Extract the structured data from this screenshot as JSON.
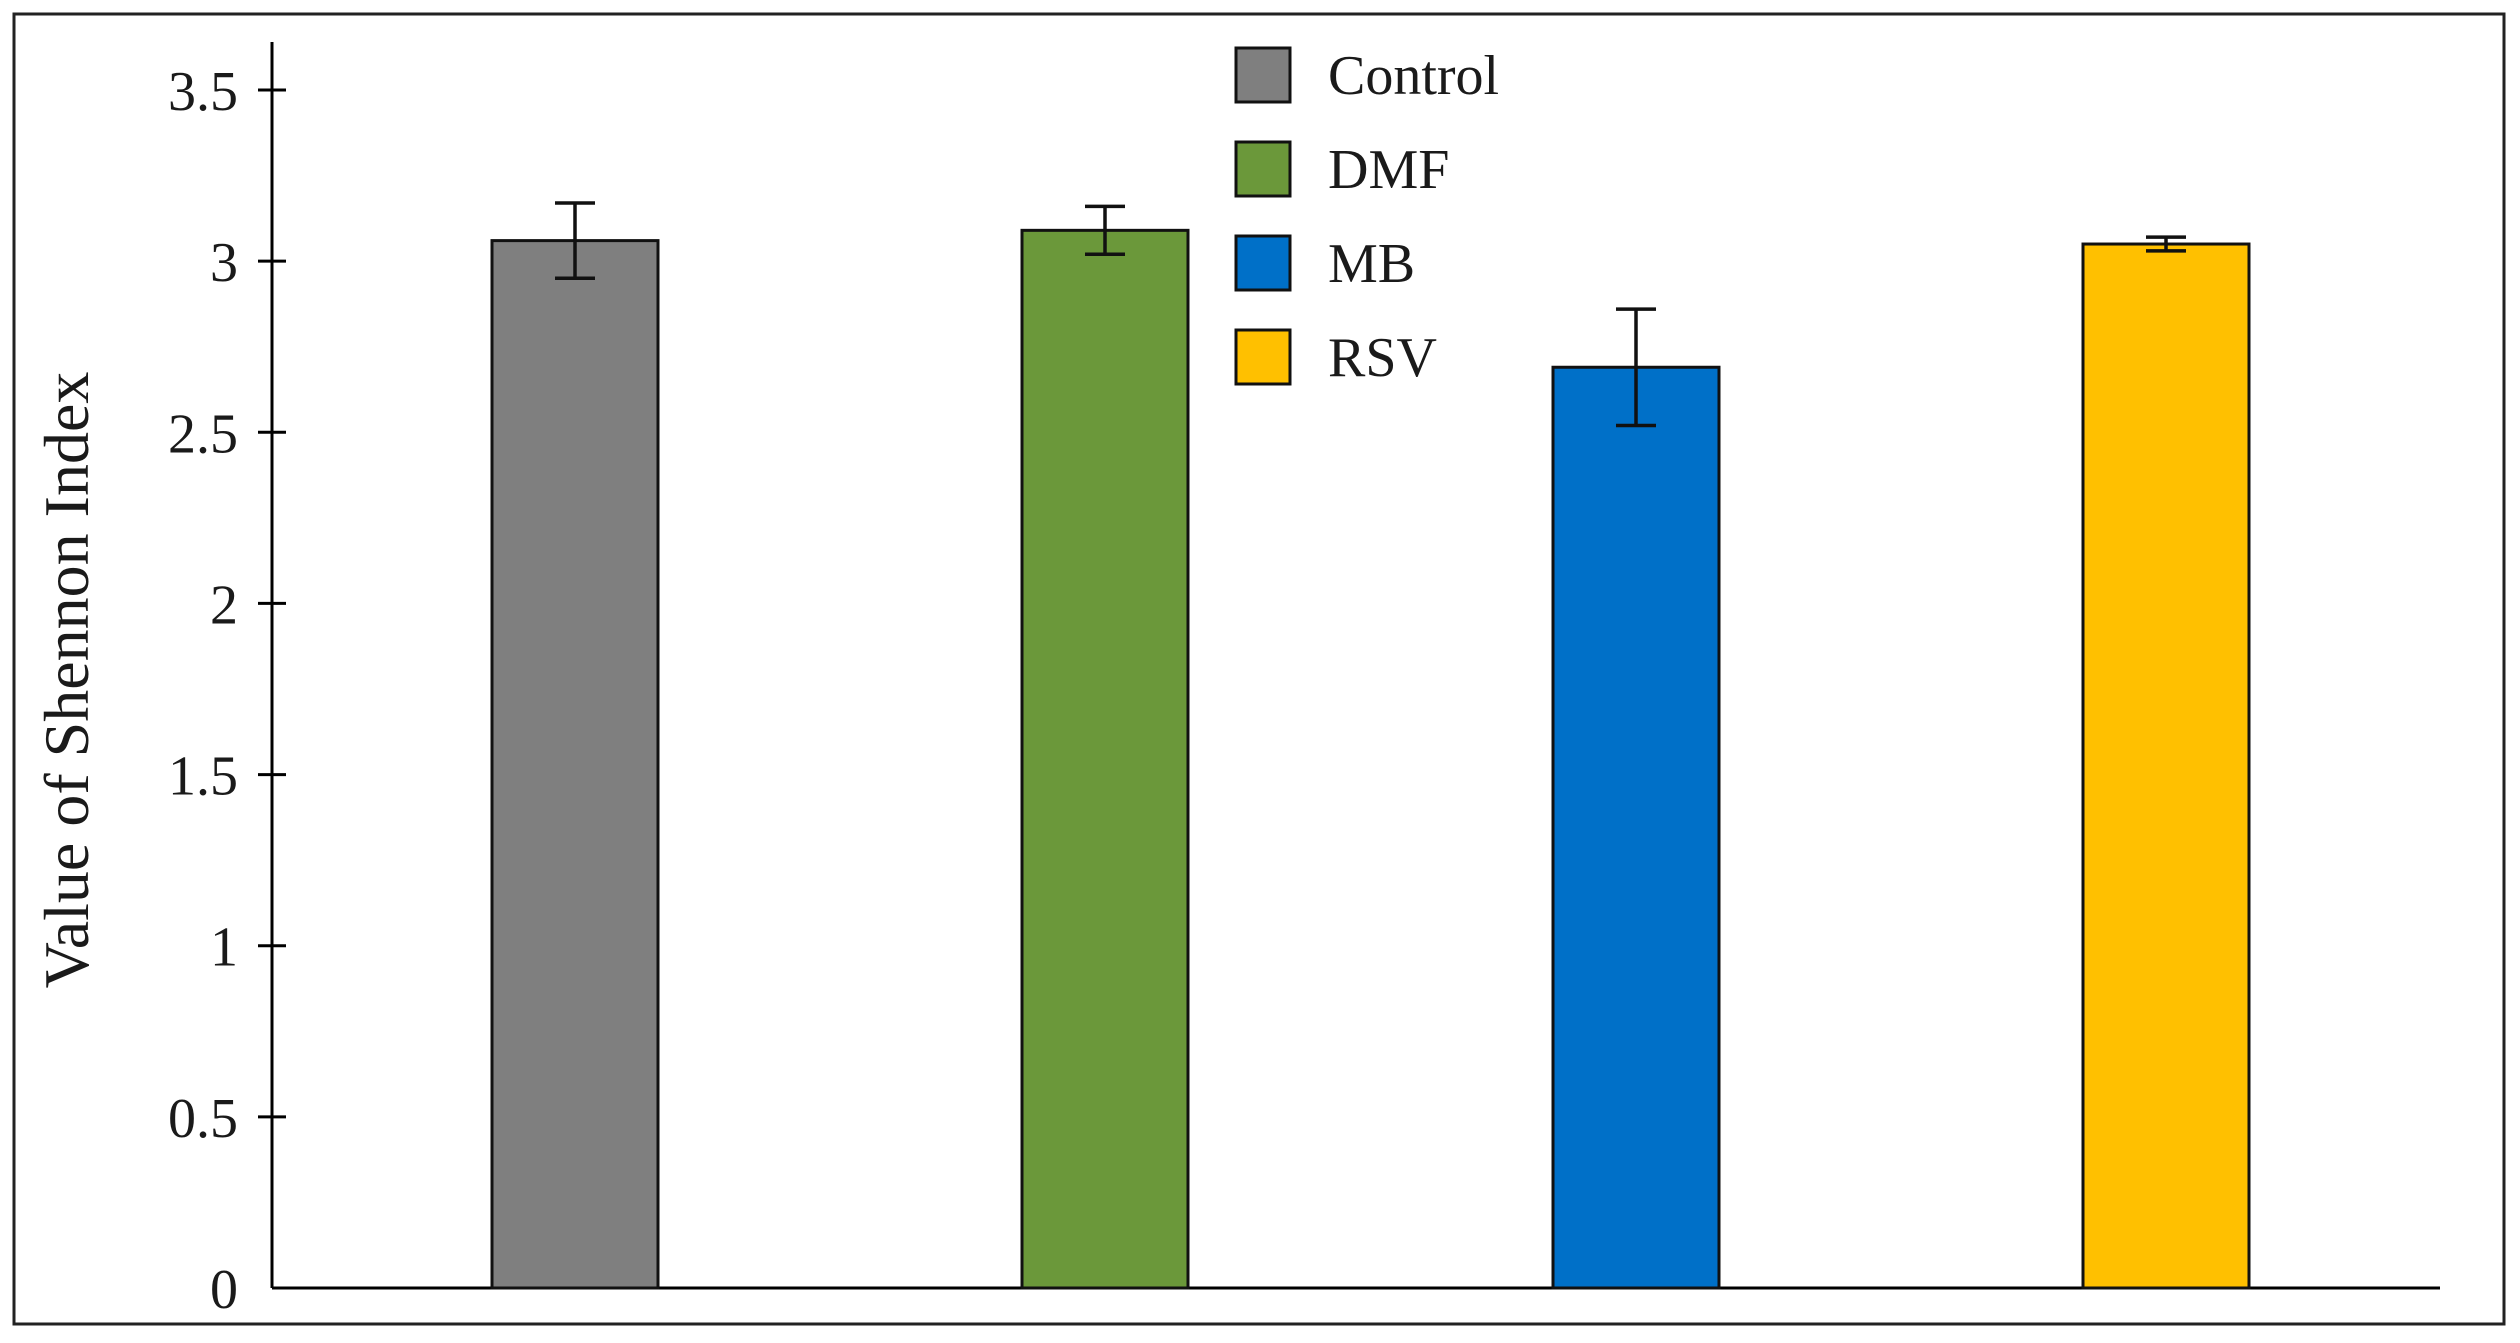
{
  "chart_data": {
    "type": "bar",
    "categories": [
      "Control",
      "DMF",
      "MB",
      "RSV"
    ],
    "values": [
      3.06,
      3.09,
      2.69,
      3.05
    ],
    "errors": [
      0.11,
      0.07,
      0.17,
      0.02
    ],
    "colors": [
      "#7f7f7f",
      "#6b983a",
      "#0070c8",
      "#ffc000"
    ],
    "ylabel": "Value of Shennon Index",
    "xlabel": "",
    "ylim": [
      0,
      3.5
    ],
    "yticks": [
      "0",
      "0.5",
      "1",
      "1.5",
      "2",
      "2.5",
      "3",
      "3.5"
    ],
    "ytick_values": [
      0,
      0.5,
      1,
      1.5,
      2,
      2.5,
      3,
      3.5
    ],
    "legend": {
      "entries": [
        "Control",
        "DMF",
        "MB",
        "RSV"
      ],
      "placement": "top-center"
    },
    "grid": false
  }
}
